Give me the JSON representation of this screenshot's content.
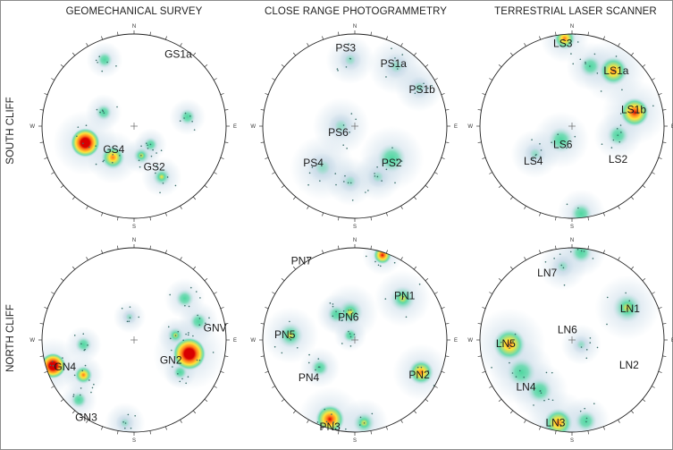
{
  "columns": [
    "GEOMECHANICAL SURVEY",
    "CLOSE RANGE PHOTOGRAMMETRY",
    "TERRESTRIAL LASER SCANNER"
  ],
  "rows": [
    "SOUTH CLIFF",
    "NORTH CLIFF"
  ],
  "directions": {
    "n": "N",
    "e": "E",
    "s": "S",
    "w": "W"
  },
  "colors": {
    "halo": "#c9dbe8",
    "low": "#4fd8a0",
    "mid": "#ffe43a",
    "high": "#ff7a1a",
    "peak": "#d80000"
  },
  "panels": [
    {
      "id": "south-geomechanical",
      "labels": [
        {
          "text": "GS1a",
          "at": [
            0.48,
            -0.78
          ]
        },
        {
          "text": "GS4",
          "at": [
            -0.22,
            0.25
          ]
        },
        {
          "text": "GS2",
          "at": [
            0.22,
            0.44
          ]
        }
      ],
      "blobs": [
        {
          "at": [
            -0.32,
            -0.72
          ],
          "r": 0.09,
          "level": 1
        },
        {
          "at": [
            -0.33,
            -0.15
          ],
          "r": 0.09,
          "level": 1
        },
        {
          "at": [
            0.58,
            -0.1
          ],
          "r": 0.09,
          "level": 1
        },
        {
          "at": [
            0.18,
            0.2
          ],
          "r": 0.08,
          "level": 1
        },
        {
          "at": [
            -0.53,
            0.18
          ],
          "r": 0.16,
          "level": 5
        },
        {
          "at": [
            -0.23,
            0.34
          ],
          "r": 0.13,
          "level": 3
        },
        {
          "at": [
            0.08,
            0.32
          ],
          "r": 0.09,
          "level": 2
        },
        {
          "at": [
            0.3,
            0.55
          ],
          "r": 0.1,
          "level": 2
        }
      ]
    },
    {
      "id": "south-photogrammetry",
      "labels": [
        {
          "text": "PS3",
          "at": [
            -0.1,
            -0.85
          ]
        },
        {
          "text": "PS1a",
          "at": [
            0.42,
            -0.68
          ]
        },
        {
          "text": "PS1b",
          "at": [
            0.73,
            -0.4
          ]
        },
        {
          "text": "PS6",
          "at": [
            -0.18,
            0.07
          ]
        },
        {
          "text": "PS4",
          "at": [
            -0.45,
            0.4
          ]
        },
        {
          "text": "PS2",
          "at": [
            0.4,
            0.4
          ]
        }
      ],
      "blobs": [
        {
          "at": [
            -0.05,
            -0.72
          ],
          "r": 0.12,
          "level": 0
        },
        {
          "at": [
            0.45,
            -0.65
          ],
          "r": 0.14,
          "level": 0
        },
        {
          "at": [
            0.7,
            -0.42
          ],
          "r": 0.12,
          "level": 0
        },
        {
          "at": [
            -0.15,
            0.0
          ],
          "r": 0.14,
          "level": 0
        },
        {
          "at": [
            -0.35,
            0.45
          ],
          "r": 0.16,
          "level": 0
        },
        {
          "at": [
            0.4,
            0.35
          ],
          "r": 0.16,
          "level": 1
        },
        {
          "at": [
            0.25,
            0.55
          ],
          "r": 0.12,
          "level": 0
        },
        {
          "at": [
            -0.05,
            0.6
          ],
          "r": 0.12,
          "level": 0
        }
      ]
    },
    {
      "id": "south-laser",
      "labels": [
        {
          "text": "LS3",
          "at": [
            -0.1,
            -0.9
          ]
        },
        {
          "text": "LS1a",
          "at": [
            0.48,
            -0.6
          ]
        },
        {
          "text": "LS1b",
          "at": [
            0.67,
            -0.18
          ]
        },
        {
          "text": "LS6",
          "at": [
            -0.1,
            0.2
          ]
        },
        {
          "text": "LS4",
          "at": [
            -0.42,
            0.38
          ]
        },
        {
          "text": "LS2",
          "at": [
            0.5,
            0.36
          ]
        }
      ],
      "blobs": [
        {
          "at": [
            -0.08,
            -0.95
          ],
          "r": 0.12,
          "level": 3
        },
        {
          "at": [
            0.45,
            -0.6
          ],
          "r": 0.16,
          "level": 3
        },
        {
          "at": [
            0.2,
            -0.65
          ],
          "r": 0.12,
          "level": 1
        },
        {
          "at": [
            0.68,
            -0.15
          ],
          "r": 0.16,
          "level": 4
        },
        {
          "at": [
            -0.12,
            0.15
          ],
          "r": 0.14,
          "level": 1
        },
        {
          "at": [
            -0.4,
            0.3
          ],
          "r": 0.12,
          "level": 0
        },
        {
          "at": [
            0.5,
            0.1
          ],
          "r": 0.12,
          "level": 1
        },
        {
          "at": [
            0.1,
            0.95
          ],
          "r": 0.12,
          "level": 1
        }
      ]
    },
    {
      "id": "north-geomechanical",
      "labels": [
        {
          "text": "GNV",
          "at": [
            0.88,
            -0.13
          ]
        },
        {
          "text": "GN2",
          "at": [
            0.4,
            0.22
          ]
        },
        {
          "text": "GN4",
          "at": [
            -0.75,
            0.29
          ]
        },
        {
          "text": "GN3",
          "at": [
            -0.52,
            0.84
          ]
        }
      ],
      "blobs": [
        {
          "at": [
            -0.05,
            -0.25
          ],
          "r": 0.08,
          "level": 0
        },
        {
          "at": [
            0.55,
            -0.45
          ],
          "r": 0.1,
          "level": 1
        },
        {
          "at": [
            0.7,
            -0.2
          ],
          "r": 0.1,
          "level": 1
        },
        {
          "at": [
            0.6,
            0.15
          ],
          "r": 0.18,
          "level": 5
        },
        {
          "at": [
            0.45,
            -0.05
          ],
          "r": 0.09,
          "level": 2
        },
        {
          "at": [
            0.5,
            0.35
          ],
          "r": 0.08,
          "level": 1
        },
        {
          "at": [
            -0.88,
            0.28
          ],
          "r": 0.14,
          "level": 5
        },
        {
          "at": [
            -0.55,
            0.38
          ],
          "r": 0.1,
          "level": 3
        },
        {
          "at": [
            -0.55,
            0.05
          ],
          "r": 0.09,
          "level": 1
        },
        {
          "at": [
            -0.6,
            0.65
          ],
          "r": 0.09,
          "level": 1
        },
        {
          "at": [
            -0.1,
            0.9
          ],
          "r": 0.1,
          "level": 0
        }
      ]
    },
    {
      "id": "north-photogrammetry",
      "labels": [
        {
          "text": "PN7",
          "at": [
            -0.58,
            -0.86
          ]
        },
        {
          "text": "PN1",
          "at": [
            0.54,
            -0.48
          ]
        },
        {
          "text": "PN6",
          "at": [
            -0.07,
            -0.25
          ]
        },
        {
          "text": "PN5",
          "at": [
            -0.76,
            -0.06
          ]
        },
        {
          "text": "PN4",
          "at": [
            -0.5,
            0.41
          ]
        },
        {
          "text": "PN2",
          "at": [
            0.7,
            0.38
          ]
        },
        {
          "text": "PN3",
          "at": [
            -0.27,
            0.94
          ]
        }
      ],
      "blobs": [
        {
          "at": [
            0.3,
            -0.92
          ],
          "r": 0.1,
          "level": 4
        },
        {
          "at": [
            0.52,
            -0.45
          ],
          "r": 0.14,
          "level": 2
        },
        {
          "at": [
            -0.05,
            -0.3
          ],
          "r": 0.14,
          "level": 2
        },
        {
          "at": [
            -0.2,
            -0.28
          ],
          "r": 0.1,
          "level": 1
        },
        {
          "at": [
            -0.7,
            -0.05
          ],
          "r": 0.14,
          "level": 2
        },
        {
          "at": [
            -0.05,
            -0.05
          ],
          "r": 0.08,
          "level": 1
        },
        {
          "at": [
            -0.38,
            0.3
          ],
          "r": 0.1,
          "level": 1
        },
        {
          "at": [
            0.72,
            0.35
          ],
          "r": 0.14,
          "level": 3
        },
        {
          "at": [
            -0.27,
            0.86
          ],
          "r": 0.16,
          "level": 4
        },
        {
          "at": [
            0.1,
            0.9
          ],
          "r": 0.12,
          "level": 2
        }
      ]
    },
    {
      "id": "north-laser",
      "labels": [
        {
          "text": "LN7",
          "at": [
            -0.27,
            -0.73
          ]
        },
        {
          "text": "LN1",
          "at": [
            0.63,
            -0.34
          ]
        },
        {
          "text": "LN6",
          "at": [
            -0.05,
            -0.11
          ]
        },
        {
          "text": "LN5",
          "at": [
            -0.72,
            0.04
          ]
        },
        {
          "text": "LN2",
          "at": [
            0.62,
            0.27
          ]
        },
        {
          "text": "LN4",
          "at": [
            -0.5,
            0.51
          ]
        },
        {
          "text": "LN3",
          "at": [
            -0.18,
            0.9
          ]
        }
      ],
      "blobs": [
        {
          "at": [
            -0.1,
            -0.8
          ],
          "r": 0.12,
          "level": 0
        },
        {
          "at": [
            0.1,
            -0.95
          ],
          "r": 0.12,
          "level": 1
        },
        {
          "at": [
            0.6,
            -0.35
          ],
          "r": 0.16,
          "level": 2
        },
        {
          "at": [
            -0.68,
            0.05
          ],
          "r": 0.18,
          "level": 3
        },
        {
          "at": [
            -0.55,
            0.35
          ],
          "r": 0.16,
          "level": 1
        },
        {
          "at": [
            -0.35,
            0.55
          ],
          "r": 0.14,
          "level": 1
        },
        {
          "at": [
            -0.15,
            0.9
          ],
          "r": 0.16,
          "level": 3
        },
        {
          "at": [
            0.15,
            0.88
          ],
          "r": 0.12,
          "level": 1
        },
        {
          "at": [
            0.1,
            0.05
          ],
          "r": 0.1,
          "level": 0
        }
      ]
    }
  ]
}
